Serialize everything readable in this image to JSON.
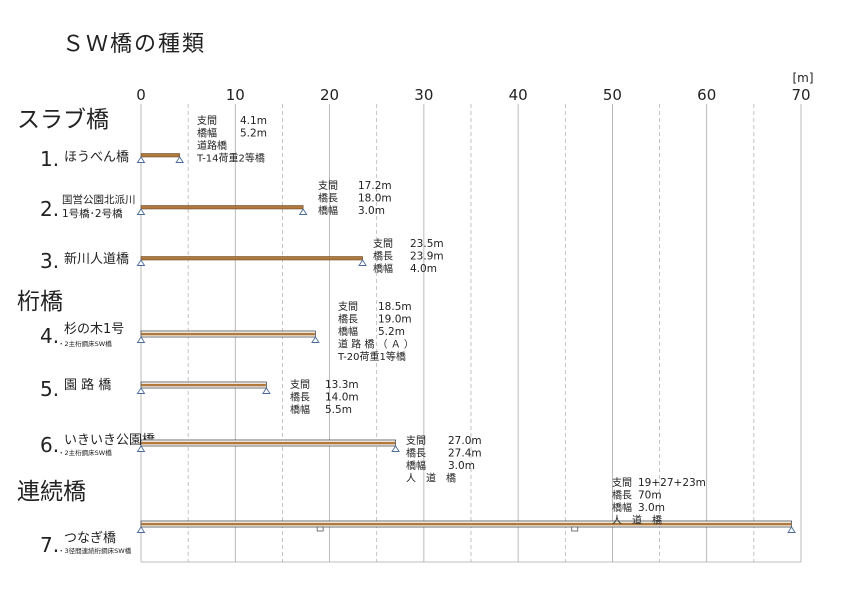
{
  "title": "ＳＷ橋の種類",
  "unit_label": "[m]",
  "axis": {
    "min": 0,
    "max": 70,
    "ticks": [
      0,
      10,
      20,
      30,
      40,
      50,
      60,
      70
    ]
  },
  "colors": {
    "deck": "#b07a3e",
    "deck_border": "#5a3a1a",
    "grid": "#aaaaaa",
    "support": "#4a6a9a"
  },
  "categories": [
    {
      "id": "slab",
      "label": "スラブ橋"
    },
    {
      "id": "girder",
      "label": "桁橋"
    },
    {
      "id": "continuous",
      "label": "連続橋"
    }
  ],
  "bridges": [
    {
      "number": "1.",
      "name_lines": [
        "ほうべん橋"
      ],
      "sub": "",
      "category": "slab",
      "span_m": 4.1,
      "deck_style": "solid",
      "supports_m": [
        0,
        4.1
      ],
      "specs": [
        [
          "支間",
          "4.1m"
        ],
        [
          "橋幅",
          "5.2m"
        ],
        [
          "道路橋",
          ""
        ],
        [
          "T-14荷重2等橋",
          ""
        ]
      ]
    },
    {
      "number": "2.",
      "name_lines": [
        "国営公園北派川",
        "1号橋･2号橋"
      ],
      "sub": "",
      "category": "slab",
      "span_m": 17.2,
      "deck_style": "solid",
      "supports_m": [
        0,
        17.2
      ],
      "specs": [
        [
          "支間",
          "17.2m"
        ],
        [
          "橋長",
          "18.0m"
        ],
        [
          "橋幅",
          "3.0m"
        ]
      ]
    },
    {
      "number": "3.",
      "name_lines": [
        "新川人道橋"
      ],
      "sub": "",
      "category": "slab",
      "span_m": 23.5,
      "deck_style": "solid",
      "supports_m": [
        0,
        23.5
      ],
      "specs": [
        [
          "支間",
          "23.5m"
        ],
        [
          "橋長",
          "23.9m"
        ],
        [
          "橋幅",
          "4.0m"
        ]
      ]
    },
    {
      "number": "4.",
      "name_lines": [
        "杉の木1号"
      ],
      "sub": "・2主桁鋼床SW橋",
      "category": "girder",
      "span_m": 18.5,
      "deck_style": "girder",
      "supports_m": [
        0,
        18.5
      ],
      "specs": [
        [
          "支間",
          "18.5m"
        ],
        [
          "橋長",
          "19.0m"
        ],
        [
          "橋幅",
          "5.2m"
        ],
        [
          "道 路 橋 （ Ａ ）",
          ""
        ],
        [
          "T-20荷重1等橋",
          ""
        ]
      ]
    },
    {
      "number": "5.",
      "name_lines": [
        "園 路 橋"
      ],
      "sub": "",
      "category": "girder",
      "span_m": 13.3,
      "deck_style": "girder",
      "supports_m": [
        0,
        13.3
      ],
      "specs": [
        [
          "支間",
          "13.3m"
        ],
        [
          "橋長",
          "14.0m"
        ],
        [
          "橋幅",
          "5.5m"
        ]
      ]
    },
    {
      "number": "6.",
      "name_lines": [
        "いきいき公園橋"
      ],
      "sub": "・2主桁鋼床SW橋",
      "category": "girder",
      "span_m": 27.0,
      "deck_style": "girder",
      "supports_m": [
        0,
        27.0
      ],
      "specs": [
        [
          "支間",
          "27.0m"
        ],
        [
          "橋長",
          "27.4m"
        ],
        [
          "橋幅",
          "3.0m"
        ],
        [
          "人　道　橋",
          ""
        ]
      ]
    },
    {
      "number": "7.",
      "name_lines": [
        "つなぎ橋"
      ],
      "sub": "・3径間連続桁鋼床SW橋",
      "category": "continuous",
      "span_m": 69,
      "deck_style": "girder",
      "supports_m": [
        0,
        19,
        46,
        69
      ],
      "specs": [
        [
          "支間",
          "19+27+23m"
        ],
        [
          "橋長",
          "70m"
        ],
        [
          "橋幅",
          "3.0m"
        ],
        [
          "人　道　橋",
          ""
        ]
      ]
    }
  ]
}
